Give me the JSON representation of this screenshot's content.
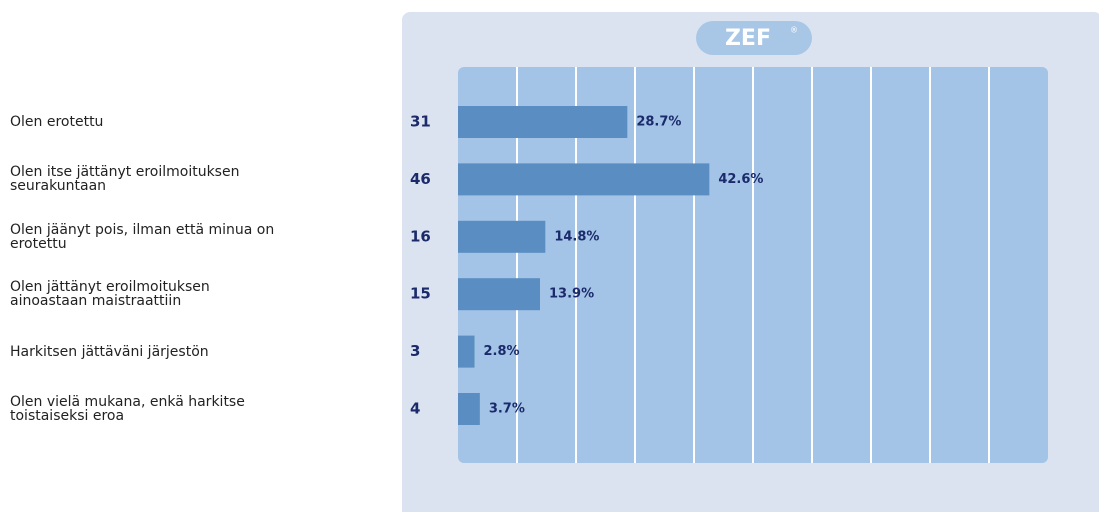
{
  "chart_data": {
    "type": "bar",
    "orientation": "horizontal",
    "logo": "ZEF",
    "categories": [
      "Olen erotettu",
      "Olen itse jättänyt eroilmoituksen\nseurakuntaan",
      "Olen jäänyt pois, ilman että minua on\nerotettu",
      "Olen jättänyt eroilmoituksen\nainoastaan maistraattiin",
      "Harkitsen jättäväni järjestön",
      "Olen vielä mukana, enkä harkitse\ntoistaiseksi eroa"
    ],
    "counts": [
      31,
      46,
      16,
      15,
      3,
      4
    ],
    "values": [
      28.7,
      42.6,
      14.8,
      13.9,
      2.8,
      3.7
    ],
    "value_labels": [
      "28.7%",
      "42.6%",
      "14.8%",
      "13.9%",
      "2.8%",
      "3.7%"
    ],
    "color": "#5a8dc2",
    "xlim": [
      0,
      100
    ],
    "xticks": [
      0,
      10,
      20,
      30,
      40,
      50,
      60,
      70,
      80,
      90,
      100
    ],
    "grid": true
  }
}
